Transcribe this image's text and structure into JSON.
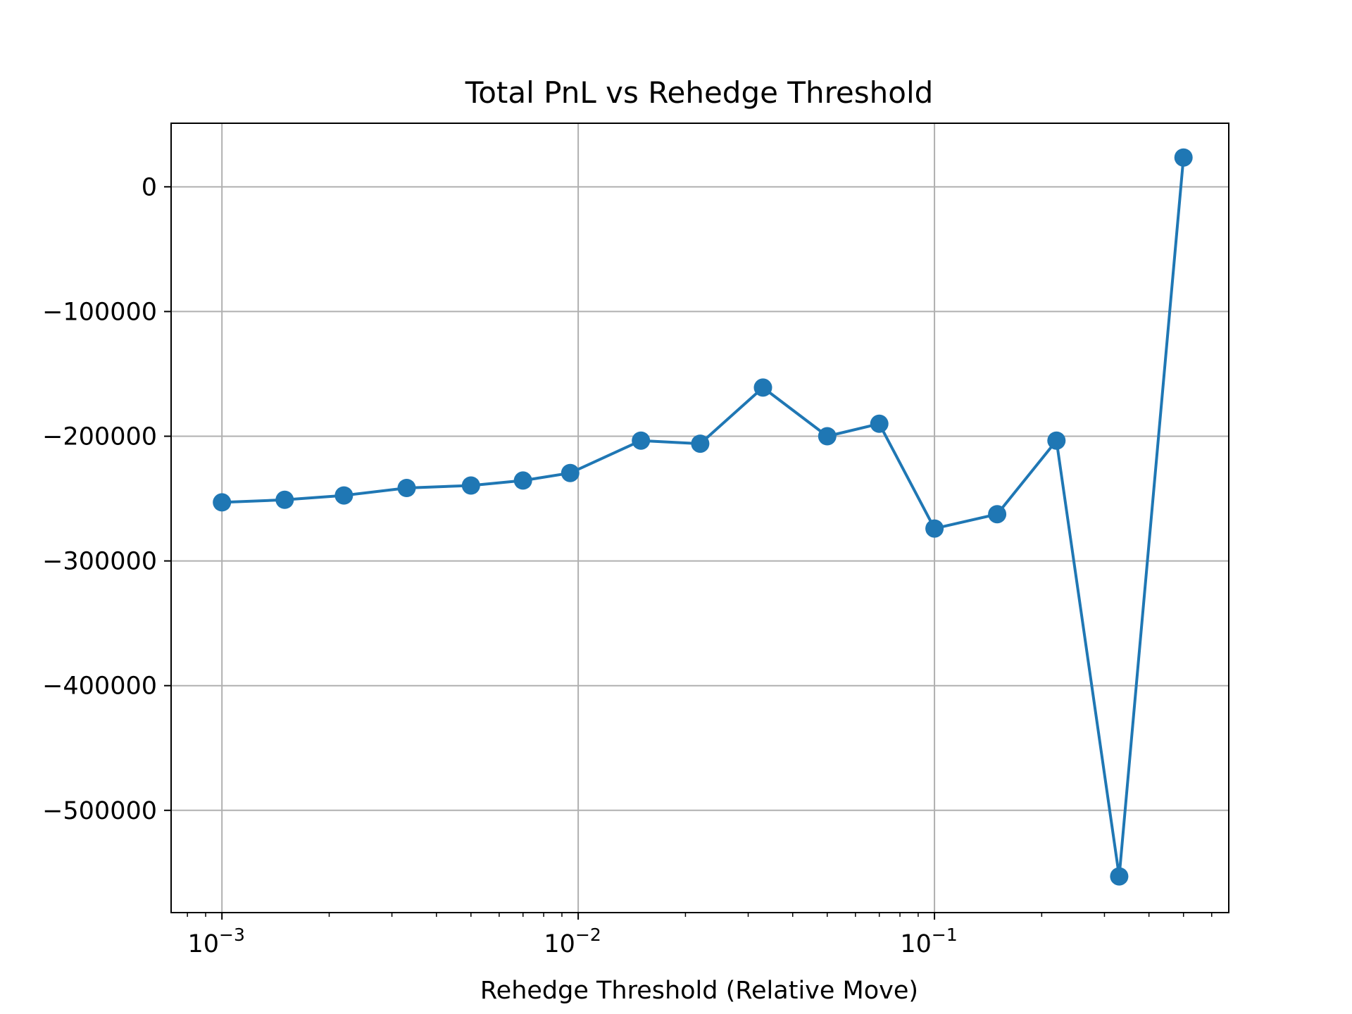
{
  "chart_data": {
    "type": "line",
    "title": "Total PnL vs Rehedge Threshold",
    "xlabel": "Rehedge Threshold (Relative Move)",
    "ylabel": "",
    "xscale": "log",
    "xlim": [
      0.00072,
      0.67
    ],
    "ylim": [
      -582000,
      51000
    ],
    "grid": true,
    "x_ticks": [
      {
        "value": 0.001,
        "base": "10",
        "exp": "−3"
      },
      {
        "value": 0.01,
        "base": "10",
        "exp": "−2"
      },
      {
        "value": 0.1,
        "base": "10",
        "exp": "−1"
      }
    ],
    "y_ticks": [
      {
        "value": 0,
        "label": "0"
      },
      {
        "value": -100000,
        "label": "−100000"
      },
      {
        "value": -200000,
        "label": "−200000"
      },
      {
        "value": -300000,
        "label": "−300000"
      },
      {
        "value": -400000,
        "label": "−400000"
      },
      {
        "value": -500000,
        "label": "−500000"
      }
    ],
    "series": [
      {
        "name": "",
        "color": "#1f77b4",
        "marker": "circle",
        "x": [
          0.001,
          0.0015,
          0.0022,
          0.0033,
          0.005,
          0.007,
          0.0095,
          0.015,
          0.022,
          0.033,
          0.05,
          0.07,
          0.1,
          0.15,
          0.22,
          0.33,
          0.5
        ],
        "y": [
          -253000,
          -251000,
          -247500,
          -241500,
          -239500,
          -235500,
          -229500,
          -203500,
          -206000,
          -161000,
          -200000,
          -190000,
          -274000,
          -262500,
          -203500,
          -553000,
          23500
        ]
      }
    ]
  }
}
